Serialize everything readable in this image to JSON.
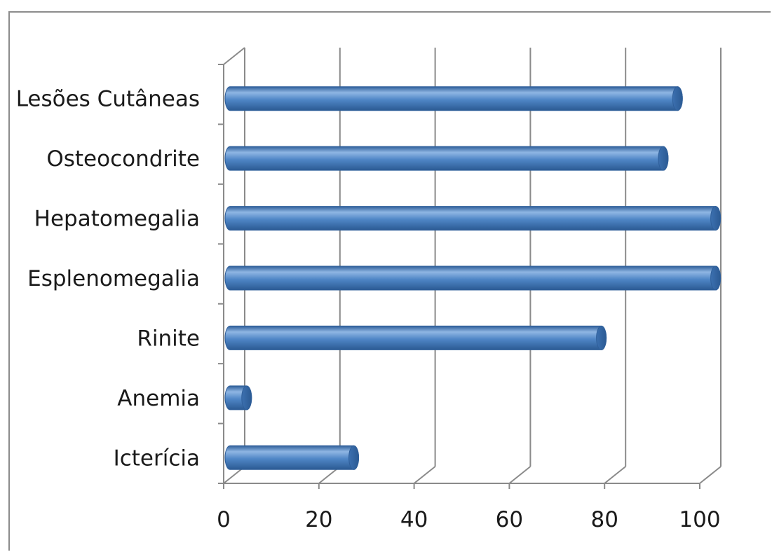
{
  "chart_data": {
    "type": "bar",
    "orientation": "horizontal",
    "style": "3d-cylinder",
    "categories": [
      "Lesões Cutâneas",
      "Osteocondrite",
      "Hepatomegalia",
      "Esplenomegalia",
      "Rinite",
      "Anemia",
      "Icterícia"
    ],
    "values": [
      94,
      91,
      102,
      102,
      78,
      3.5,
      26
    ],
    "xlim": [
      0,
      100
    ],
    "xticks": [
      0,
      20,
      40,
      60,
      80,
      100
    ],
    "grid": true,
    "legend": "none",
    "title": "",
    "xlabel": "",
    "ylabel": "",
    "colors": {
      "bar": "#4f86c6",
      "bar_dark": "#2f5f9a",
      "bar_light": "#8fb6e3",
      "grid": "#8a8a8a"
    }
  }
}
